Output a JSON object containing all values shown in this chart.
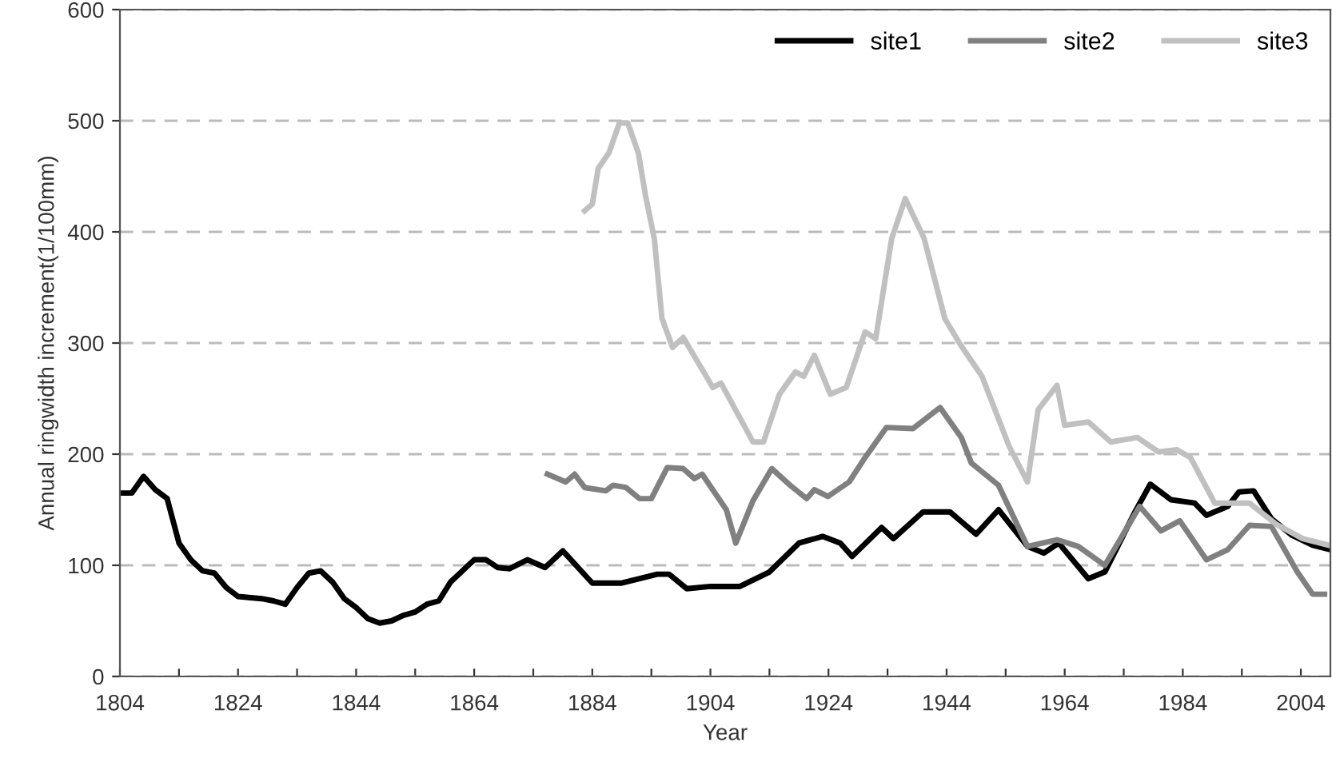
{
  "chart_data": {
    "type": "line",
    "xlabel": "Year",
    "ylabel": "Annual ringwidth increment(1/100mm)",
    "xlim": [
      1804,
      2009
    ],
    "ylim": [
      0,
      600
    ],
    "xticks": [
      1804,
      {
        "value": 1814,
        "label": null
      },
      1824,
      {
        "value": 1834,
        "label": null
      },
      1844,
      {
        "value": 1854,
        "label": null
      },
      1864,
      {
        "value": 1874,
        "label": null
      },
      1884,
      {
        "value": 1894,
        "label": null
      },
      1904,
      {
        "value": 1914,
        "label": null
      },
      1924,
      {
        "value": 1934,
        "label": null
      },
      1944,
      {
        "value": 1954,
        "label": null
      },
      1964,
      {
        "value": 1974,
        "label": null
      },
      1984,
      {
        "value": 1994,
        "label": null
      },
      2004
    ],
    "yticks": [
      0,
      100,
      200,
      300,
      400,
      500,
      600
    ],
    "grid": "y",
    "legend": "top right",
    "line_style": "solid",
    "marker": "none",
    "series": [
      {
        "name": "site1",
        "color": "#000000",
        "x": [
          1804,
          1806,
          1808,
          1810,
          1812,
          1814,
          1816,
          1818,
          1820,
          1822,
          1824,
          1828,
          1830,
          1832,
          1834,
          1836,
          1838,
          1840,
          1842,
          1844,
          1846,
          1848,
          1850,
          1852,
          1854,
          1856,
          1858,
          1860,
          1862,
          1864,
          1866,
          1868,
          1870,
          1873,
          1876,
          1879,
          1884,
          1889,
          1895,
          1897,
          1900,
          1904,
          1909,
          1914,
          1919,
          1923,
          1926,
          1928,
          1933,
          1935,
          1940,
          1944.6,
          1949,
          1952.8,
          1957.7,
          1960.5,
          1963,
          1968,
          1970.8,
          1976,
          1978.5,
          1982,
          1986,
          1988,
          1991.6,
          1993.5,
          1996,
          1999,
          2002.5,
          2006,
          2009
        ],
        "values": [
          165,
          165,
          180,
          168,
          160,
          120,
          105,
          95,
          93,
          80,
          72,
          70,
          68,
          65,
          80,
          93,
          95,
          85,
          70,
          62,
          52,
          48,
          50,
          55,
          58,
          65,
          68,
          85,
          95,
          105,
          105,
          98,
          97,
          105,
          98,
          113,
          84,
          84,
          92,
          92,
          79,
          81,
          81,
          94,
          120,
          126,
          120,
          108,
          134,
          124,
          148,
          148,
          128,
          150,
          117,
          111,
          120,
          88,
          94,
          149,
          173,
          159,
          156,
          145,
          153,
          166,
          167,
          142,
          127,
          118,
          114
        ]
      },
      {
        "name": "site2",
        "color": "#808080",
        "x": [
          1876.4,
          1879.5,
          1881,
          1882.7,
          1886.3,
          1887.5,
          1889.7,
          1892,
          1894,
          1896.7,
          1899.4,
          1901.3,
          1902.6,
          1904.9,
          1906.7,
          1908.3,
          1911.2,
          1914.4,
          1917.5,
          1920.3,
          1921.6,
          1923.9,
          1927.5,
          1930.2,
          1933.8,
          1938.3,
          1942.9,
          1946.5,
          1948.2,
          1952.8,
          1957.7,
          1962.7,
          1966.3,
          1970.8,
          1976.7,
          1980.3,
          1983.5,
          1988,
          1991.6,
          1995.3,
          1999,
          2003.4,
          2006,
          2008
        ],
        "values": [
          182,
          175,
          182,
          170,
          167,
          172,
          170,
          160,
          160,
          188,
          187,
          178,
          182,
          164,
          150,
          120,
          158,
          187,
          172,
          160,
          168,
          162,
          175,
          197,
          224,
          223,
          242,
          215,
          192,
          172,
          117,
          123,
          117,
          100,
          153,
          131,
          140,
          105,
          114,
          136,
          135,
          94,
          74,
          74
        ]
      },
      {
        "name": "site3",
        "color": "#c0c0c0",
        "x": [
          1882.7,
          1884,
          1885,
          1886.8,
          1888.6,
          1890,
          1891.8,
          1893,
          1894.5,
          1895.8,
          1897.6,
          1899.4,
          1904.4,
          1905.8,
          1911.2,
          1913,
          1915.7,
          1918.4,
          1919.8,
          1921.6,
          1924.3,
          1927,
          1930.2,
          1932,
          1934.7,
          1937,
          1940.2,
          1943.7,
          1946.4,
          1950,
          1954.6,
          1957.7,
          1959.5,
          1962.7,
          1964,
          1968,
          1971.8,
          1976.3,
          1979.9,
          1983,
          1985.3,
          1989.4,
          1995.3,
          1999.8,
          2004.3,
          2008.8
        ],
        "values": [
          419,
          425,
          457,
          471,
          498,
          498,
          471,
          433,
          394,
          322,
          296,
          305,
          260,
          264,
          211,
          211,
          254,
          274,
          270,
          289,
          254,
          260,
          310,
          304,
          394,
          430,
          394,
          322,
          298,
          270,
          207,
          175,
          240,
          262,
          226,
          229,
          211,
          215,
          202,
          204,
          197,
          156,
          156,
          137,
          124,
          118
        ]
      }
    ]
  }
}
